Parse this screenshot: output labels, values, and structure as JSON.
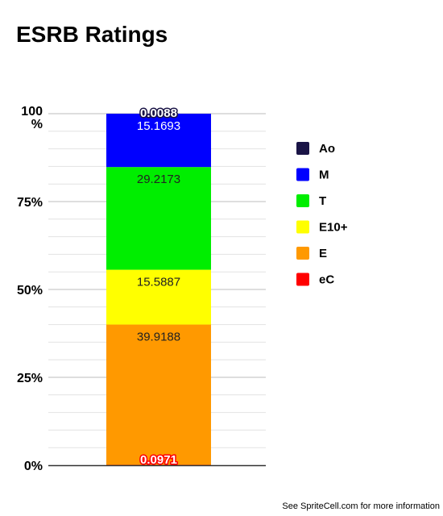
{
  "chart_data": {
    "type": "bar",
    "stacked": true,
    "normalized": true,
    "title": "ESRB Ratings",
    "categories": [
      ""
    ],
    "ylim": [
      0,
      100
    ],
    "yticks": [
      "0%",
      "25%",
      "50%",
      "75%",
      "100\n%"
    ],
    "grid": true,
    "legend_position": "right",
    "series": [
      {
        "name": "eC",
        "values": [
          0.0971
        ],
        "label": "0.0971",
        "color": "#ff0000"
      },
      {
        "name": "E",
        "values": [
          39.9188
        ],
        "label": "39.9188",
        "color": "#ff9900"
      },
      {
        "name": "E10+",
        "values": [
          15.5887
        ],
        "label": "15.5887",
        "color": "#ffff00"
      },
      {
        "name": "T",
        "values": [
          29.2173
        ],
        "label": "29.2173",
        "color": "#00ee00"
      },
      {
        "name": "M",
        "values": [
          15.1693
        ],
        "label": "15.1693",
        "color": "#0000ff"
      },
      {
        "name": "Ao",
        "values": [
          0.0088
        ],
        "label": "0.0088",
        "color": "#1a1446"
      }
    ],
    "legend_order": [
      "Ao",
      "M",
      "T",
      "E10+",
      "E",
      "eC"
    ]
  },
  "footnote": "See SpriteCell.com for more information"
}
